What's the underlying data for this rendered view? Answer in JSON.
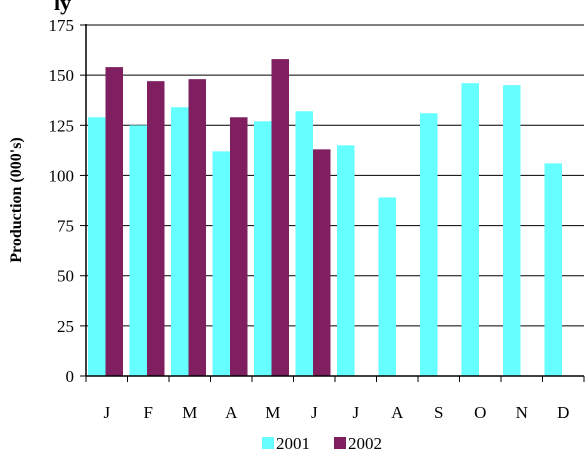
{
  "chart_data": {
    "type": "bar",
    "title": "ly",
    "ylabel": "Production (000's)",
    "xlabel": "",
    "categories": [
      "J",
      "F",
      "M",
      "A",
      "M",
      "J",
      "J",
      "A",
      "S",
      "O",
      "N",
      "D"
    ],
    "series": [
      {
        "name": "2001",
        "color": "#66ffff",
        "values": [
          129,
          125,
          134,
          112,
          127,
          132,
          115,
          89,
          131,
          146,
          145,
          106
        ]
      },
      {
        "name": "2002",
        "color": "#7f1f5f",
        "values": [
          154,
          147,
          148,
          129,
          158,
          113,
          null,
          null,
          null,
          null,
          null,
          null
        ]
      }
    ],
    "ylim": [
      0,
      175
    ],
    "yticks": [
      0,
      25,
      50,
      75,
      100,
      125,
      150,
      175
    ],
    "grid": true,
    "legend": "bottom"
  }
}
